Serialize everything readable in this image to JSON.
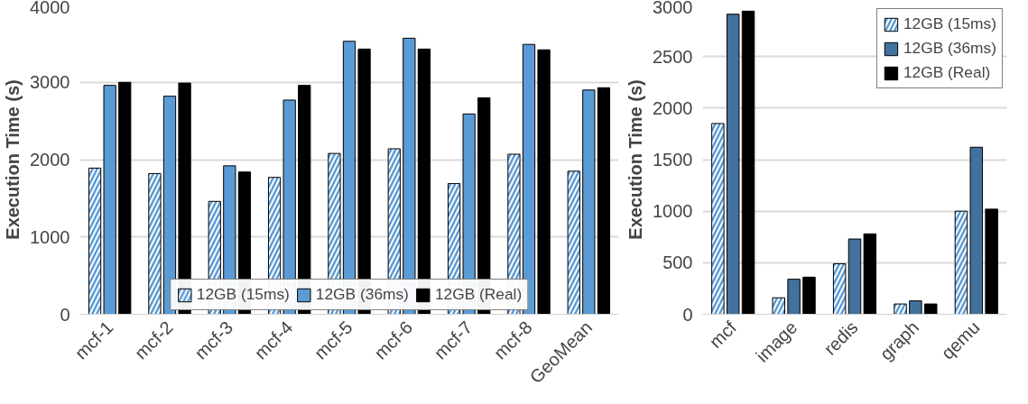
{
  "chart_data": [
    {
      "type": "bar",
      "ylabel": "Execution Time (s)",
      "categories": [
        "mcf-1",
        "mcf-2",
        "mcf-3",
        "mcf-4",
        "mcf-5",
        "mcf-6",
        "mcf-7",
        "mcf-8",
        "GeoMean"
      ],
      "ylim": [
        0,
        4000
      ],
      "yticks": [
        0,
        1000,
        2000,
        3000,
        4000
      ],
      "grid": "y",
      "legend": "bottom",
      "series": [
        {
          "name": "12GB (15ms)",
          "color": "#5b9bd5",
          "values": [
            1890,
            1820,
            1460,
            1770,
            2080,
            2140,
            1690,
            2070,
            1850
          ]
        },
        {
          "name": "12GB (36ms)",
          "color": "#5b9bd5",
          "values": [
            2960,
            2820,
            1920,
            2770,
            3530,
            3570,
            2590,
            3490,
            2900
          ]
        },
        {
          "name": "12GB (Real)",
          "color": "#000000",
          "values": [
            3000,
            2990,
            1840,
            2960,
            3430,
            3430,
            2800,
            3420,
            2930
          ]
        }
      ]
    },
    {
      "type": "bar",
      "ylabel": "Execution Time (s)",
      "categories": [
        "mcf",
        "image",
        "redis",
        "graph",
        "qemu"
      ],
      "ylim": [
        0,
        3000
      ],
      "yticks": [
        0,
        500,
        1000,
        1500,
        2000,
        2500,
        3000
      ],
      "grid": "y",
      "legend": "top right",
      "series": [
        {
          "name": "12GB (15ms)",
          "color": "#5b9bd5",
          "values": [
            1850,
            160,
            490,
            100,
            1000
          ]
        },
        {
          "name": "12GB (36ms)",
          "color": "#41719c",
          "values": [
            2910,
            340,
            730,
            130,
            1620
          ]
        },
        {
          "name": "12GB (Real)",
          "color": "#000000",
          "values": [
            2940,
            360,
            780,
            100,
            1020
          ]
        }
      ]
    }
  ]
}
